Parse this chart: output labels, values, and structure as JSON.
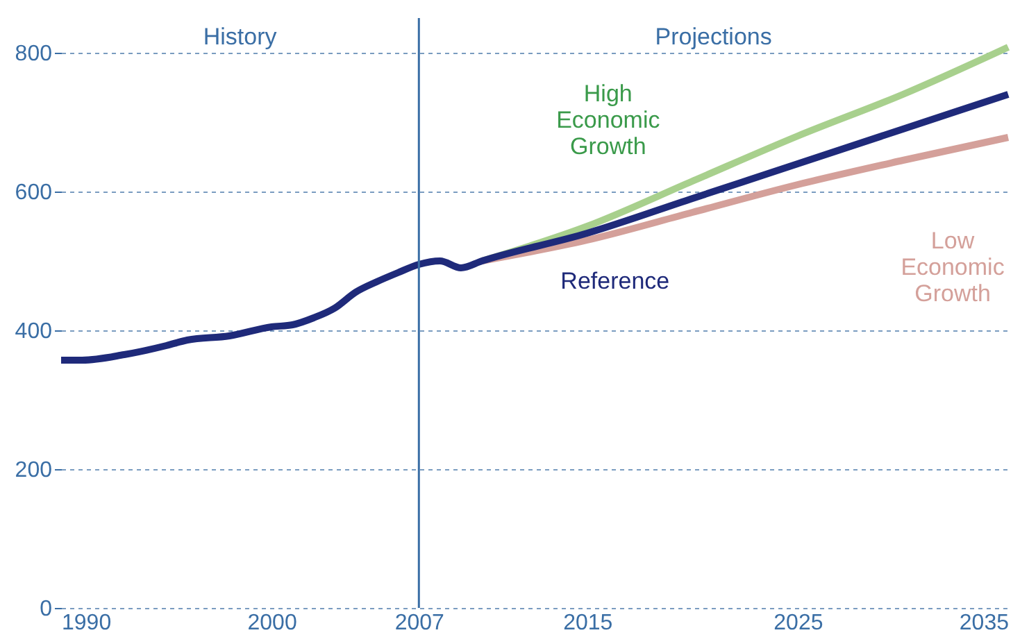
{
  "chart_data": {
    "type": "line",
    "xlim": [
      1990,
      2035
    ],
    "xticks": [
      1990,
      2000,
      2007,
      2015,
      2025,
      2035
    ],
    "ylim": [
      0,
      850
    ],
    "yticks": [
      0,
      200,
      400,
      600,
      800
    ],
    "grid": "y",
    "series": [
      {
        "name": "High Economic Growth",
        "color": "#a8d08d",
        "x": [
          2010,
          2015,
          2020,
          2025,
          2030,
          2035
        ],
        "values": [
          500,
          550,
          615,
          680,
          740,
          808
        ]
      },
      {
        "name": "Low Economic Growth",
        "color": "#d4a09a",
        "x": [
          2010,
          2015,
          2020,
          2025,
          2030,
          2035
        ],
        "values": [
          500,
          530,
          570,
          610,
          645,
          678
        ]
      },
      {
        "name": "Reference",
        "color": "#1f2a7a",
        "x": [
          1990,
          1991,
          1993,
          1995,
          1996,
          1998,
          2000,
          2001,
          2002,
          2003,
          2004,
          2005,
          2006,
          2007,
          2008,
          2009,
          2010,
          2015,
          2020,
          2025,
          2030,
          2035
        ],
        "values": [
          357,
          357,
          365,
          378,
          386,
          392,
          405,
          408,
          418,
          432,
          455,
          470,
          483,
          495,
          500,
          490,
          500,
          540,
          590,
          640,
          690,
          740
        ]
      }
    ],
    "ref_lines": [
      {
        "axis": "x",
        "value": 2007,
        "label": null,
        "color": "#3a6ea5"
      }
    ],
    "annotations": [
      "History",
      "Projections"
    ]
  }
}
